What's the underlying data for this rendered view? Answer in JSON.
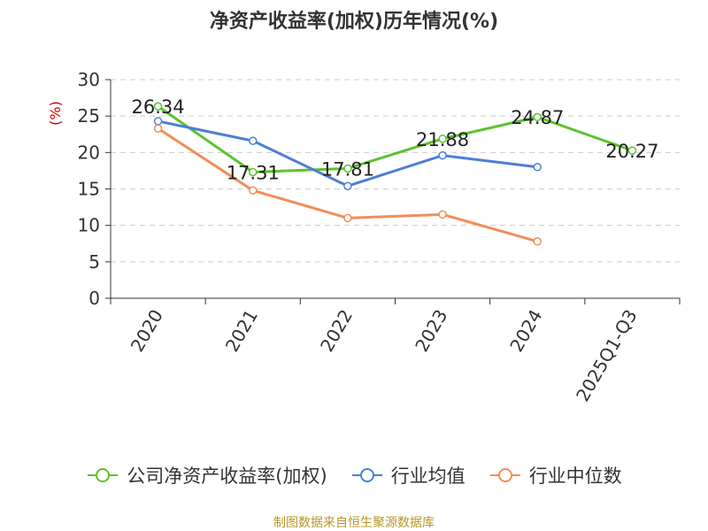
{
  "header": {
    "title": "净资产收益率(加权)历年情况(%)"
  },
  "footer": {
    "source": "制图数据来自恒生聚源数据库"
  },
  "chart_data": {
    "type": "line",
    "title": "净资产收益率(加权)历年情况(%)",
    "xlabel": "",
    "ylabel": "(%)",
    "categories": [
      "2020",
      "2021",
      "2022",
      "2023",
      "2024",
      "2025Q1-Q3"
    ],
    "yticks": [
      "0",
      "5",
      "10",
      "15",
      "20",
      "25",
      "30"
    ],
    "ylim": [
      0,
      30
    ],
    "grid": true,
    "legend_position": "bottom",
    "series": [
      {
        "name": "公司净资产收益率(加权)",
        "color": "#5dc22e",
        "values": [
          26.34,
          17.31,
          17.81,
          21.88,
          24.87,
          20.27
        ],
        "labels": [
          "26.34",
          "17.31",
          "17.81",
          "21.88",
          "24.87",
          "20.27"
        ]
      },
      {
        "name": "行业均值",
        "color": "#4a7fd6",
        "values": [
          24.3,
          21.6,
          15.4,
          19.6,
          18.0,
          null
        ]
      },
      {
        "name": "行业中位数",
        "color": "#f48c5a",
        "values": [
          23.3,
          14.8,
          11.0,
          11.5,
          7.8,
          null
        ]
      }
    ]
  }
}
